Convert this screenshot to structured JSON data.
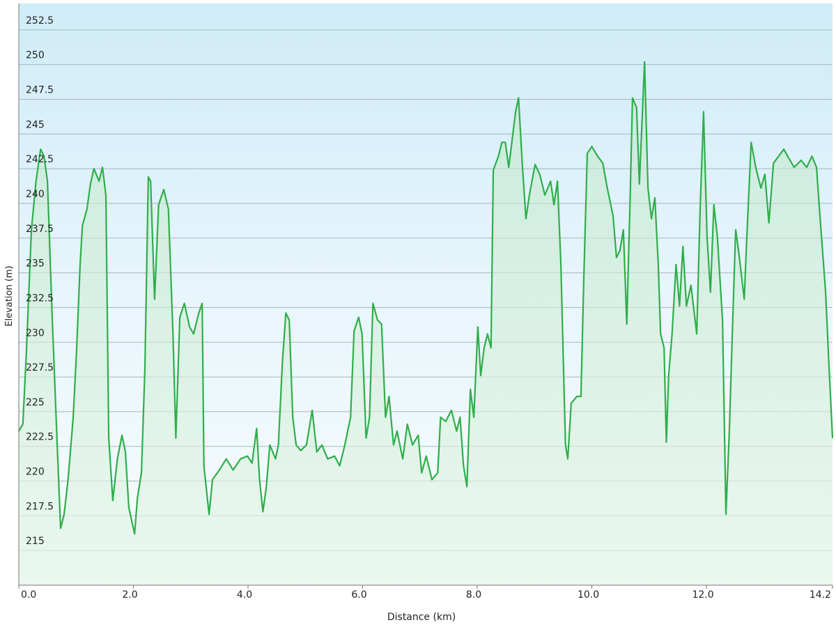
{
  "chart_data": {
    "type": "area",
    "x_label": "Distance  (km)",
    "y_label": "Elevation (m)",
    "color": "#2fae4a",
    "x": [
      0,
      0.07,
      0.13,
      0.22,
      0.3,
      0.38,
      0.44,
      0.5,
      0.58,
      0.67,
      0.73,
      0.79,
      0.86,
      0.95,
      1.01,
      1.07,
      1.11,
      1.19,
      1.25,
      1.31,
      1.4,
      1.46,
      1.52,
      1.57,
      1.64,
      1.72,
      1.8,
      1.86,
      1.92,
      2.02,
      2.07,
      2.14,
      2.2,
      2.26,
      2.3,
      2.37,
      2.44,
      2.53,
      2.61,
      2.69,
      2.74,
      2.81,
      2.89,
      2.98,
      3.05,
      3.14,
      3.2,
      3.23,
      3.32,
      3.38,
      3.5,
      3.62,
      3.74,
      3.87,
      3.99,
      4.07,
      4.15,
      4.2,
      4.26,
      4.32,
      4.38,
      4.48,
      4.53,
      4.6,
      4.66,
      4.72,
      4.78,
      4.84,
      4.92,
      5.02,
      5.12,
      5.2,
      5.29,
      5.39,
      5.51,
      5.6,
      5.69,
      5.79,
      5.85,
      5.93,
      5.99,
      6.06,
      6.12,
      6.18,
      6.26,
      6.33,
      6.4,
      6.46,
      6.54,
      6.6,
      6.7,
      6.78,
      6.87,
      6.97,
      7.03,
      7.11,
      7.21,
      7.31,
      7.36,
      7.45,
      7.55,
      7.64,
      7.7,
      7.76,
      7.82,
      7.88,
      7.94,
      8.01,
      8.06,
      8.12,
      8.18,
      8.24,
      8.28,
      8.37,
      8.43,
      8.49,
      8.55,
      8.61,
      8.67,
      8.72,
      8.79,
      8.85,
      8.91,
      9.01,
      9.09,
      9.18,
      9.28,
      9.34,
      9.4,
      9.46,
      9.54,
      9.58,
      9.64,
      9.74,
      9.81,
      9.86,
      9.92,
      10.0,
      10.1,
      10.19,
      10.27,
      10.37,
      10.43,
      10.49,
      10.55,
      10.61,
      10.67,
      10.71,
      10.78,
      10.83,
      10.92,
      10.98,
      11.04,
      11.1,
      11.16,
      11.2,
      11.26,
      11.3,
      11.34,
      11.4,
      11.47,
      11.53,
      11.59,
      11.65,
      11.73,
      11.83,
      11.89,
      11.95,
      12.01,
      12.07,
      12.13,
      12.19,
      12.28,
      12.34,
      12.4,
      12.46,
      12.51,
      12.56,
      12.66,
      12.7,
      12.78,
      12.86,
      12.95,
      13.02,
      13.09,
      13.17,
      13.26,
      13.35,
      13.43,
      13.53,
      13.65,
      13.75,
      13.84,
      13.92,
      13.99,
      14.08,
      14.14,
      14.2
    ],
    "values": [
      223.6,
      224.1,
      229.1,
      238.1,
      241.6,
      243.9,
      243.4,
      241.6,
      232.1,
      222.6,
      216.6,
      217.6,
      220.1,
      224.6,
      229.6,
      235.6,
      238.4,
      239.6,
      241.4,
      242.5,
      241.6,
      242.6,
      240.6,
      223.1,
      218.6,
      221.6,
      223.3,
      222.1,
      218.1,
      216.2,
      218.8,
      220.6,
      228.1,
      241.9,
      241.6,
      233.1,
      239.9,
      241.0,
      239.6,
      230.6,
      223.1,
      231.8,
      232.8,
      231.1,
      230.6,
      232.1,
      232.8,
      221.1,
      217.6,
      220.1,
      220.8,
      221.6,
      220.8,
      221.6,
      221.8,
      221.3,
      223.8,
      220.1,
      217.8,
      219.6,
      222.6,
      221.6,
      222.6,
      228.6,
      232.1,
      231.6,
      224.6,
      222.6,
      222.2,
      222.6,
      225.1,
      222.1,
      222.6,
      221.6,
      221.8,
      221.1,
      222.6,
      224.6,
      230.8,
      231.8,
      230.6,
      223.1,
      224.6,
      232.8,
      231.6,
      231.3,
      224.6,
      226.1,
      222.6,
      223.6,
      221.6,
      224.1,
      222.6,
      223.3,
      220.6,
      221.8,
      220.1,
      220.6,
      224.6,
      224.3,
      225.1,
      223.6,
      224.6,
      221.1,
      219.6,
      226.6,
      224.6,
      231.1,
      227.6,
      229.6,
      230.6,
      229.6,
      242.4,
      243.4,
      244.4,
      244.4,
      242.6,
      244.6,
      246.6,
      247.6,
      242.6,
      238.9,
      240.6,
      242.8,
      242.1,
      240.6,
      241.6,
      239.9,
      241.6,
      235.6,
      222.6,
      221.6,
      225.6,
      226.1,
      226.1,
      234.6,
      243.6,
      244.1,
      243.4,
      242.9,
      241.1,
      239.1,
      236.1,
      236.6,
      238.1,
      231.3,
      240.6,
      247.6,
      246.9,
      241.4,
      250.2,
      241.1,
      238.9,
      240.4,
      235.6,
      230.6,
      229.6,
      222.8,
      227.6,
      230.6,
      235.6,
      232.6,
      236.9,
      232.6,
      234.1,
      230.6,
      239.6,
      246.6,
      237.6,
      233.6,
      239.9,
      237.6,
      231.6,
      217.6,
      223.6,
      231.8,
      238.1,
      236.6,
      233.1,
      237.1,
      244.4,
      242.6,
      241.1,
      242.1,
      238.6,
      242.9,
      243.4,
      243.9,
      243.3,
      242.6,
      243.1,
      242.6,
      243.4,
      242.6,
      238.6,
      233.6,
      228.1,
      223.1
    ],
    "xlim": [
      0,
      14.2
    ],
    "xticks": [
      {
        "value": 0,
        "label": "0.0"
      },
      {
        "value": 2,
        "label": "2.0"
      },
      {
        "value": 4,
        "label": "4.0"
      },
      {
        "value": 6,
        "label": "6.0"
      },
      {
        "value": 8,
        "label": "8.0"
      },
      {
        "value": 10,
        "label": "10.0"
      },
      {
        "value": 12,
        "label": "12.0"
      },
      {
        "value": 14.2,
        "label": "14.2"
      }
    ],
    "ylim": [
      212.5,
      254.4
    ],
    "yticks": [
      215,
      217.5,
      220,
      222.5,
      225,
      227.5,
      230,
      232.5,
      235,
      237.5,
      240,
      242.5,
      245,
      247.5,
      250,
      252.5
    ],
    "grid": true
  }
}
